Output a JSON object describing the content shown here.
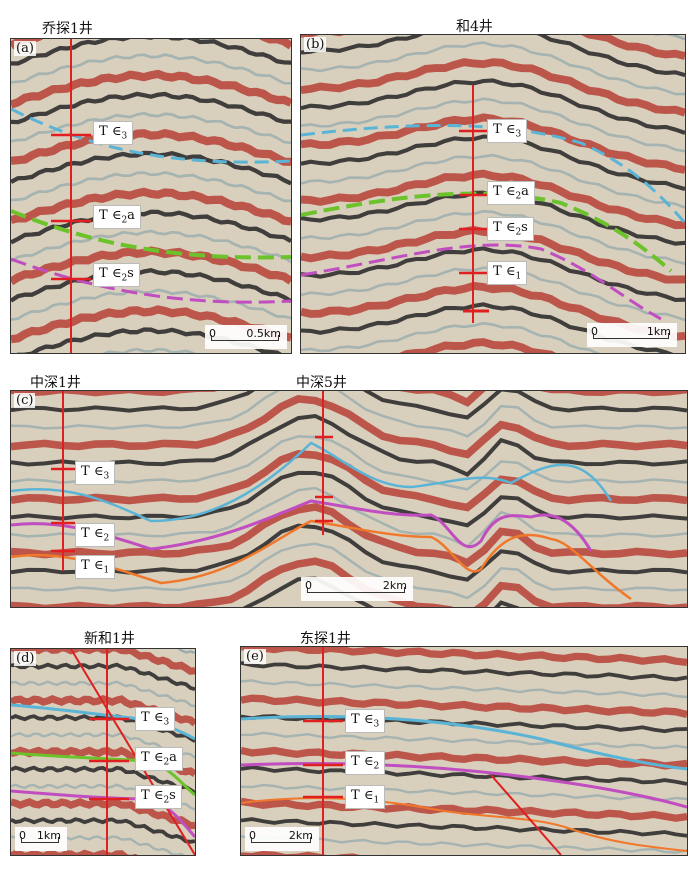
{
  "titles": {
    "a": "乔探1井",
    "b": "和4井",
    "c1": "中深1井",
    "c2": "中深5井",
    "d": "新和1井",
    "e": "东探1井"
  },
  "panels": {
    "a": {
      "label": "(a)",
      "scale_zero": "0",
      "scale_dist": "0.5km"
    },
    "b": {
      "label": "(b)",
      "scale_zero": "0",
      "scale_dist": "1km"
    },
    "c": {
      "label": "(c)",
      "scale_zero": "0",
      "scale_dist": "2km"
    },
    "d": {
      "label": "(d)",
      "scale_zero": "0",
      "scale_dist": "1km"
    },
    "e": {
      "label": "(e)",
      "scale_zero": "0",
      "scale_dist": "2km"
    }
  },
  "horizons": {
    "T_c3": {
      "main": "T",
      "sym": "∈",
      "sub": "3",
      "suffix": ""
    },
    "T_c2a": {
      "main": "T",
      "sym": "∈",
      "sub": "2",
      "suffix": "a"
    },
    "T_c2s": {
      "main": "T",
      "sym": "∈",
      "sub": "2",
      "suffix": "s"
    },
    "T_c2": {
      "main": "T",
      "sym": "∈",
      "sub": "2",
      "suffix": ""
    },
    "T_c1": {
      "main": "T",
      "sym": "∈",
      "sub": "1",
      "suffix": ""
    }
  },
  "colors": {
    "well": "#e02020",
    "T_c3": "#5ab4d6",
    "T_c2a": "#6cc22a",
    "T_c2s": "#c04ec0",
    "T_c2": "#c04ec0",
    "T_c1": "#f0782a",
    "red_band": "#b8453a",
    "dark_band": "#2a2a2a",
    "beige": "#d9cfbd"
  }
}
